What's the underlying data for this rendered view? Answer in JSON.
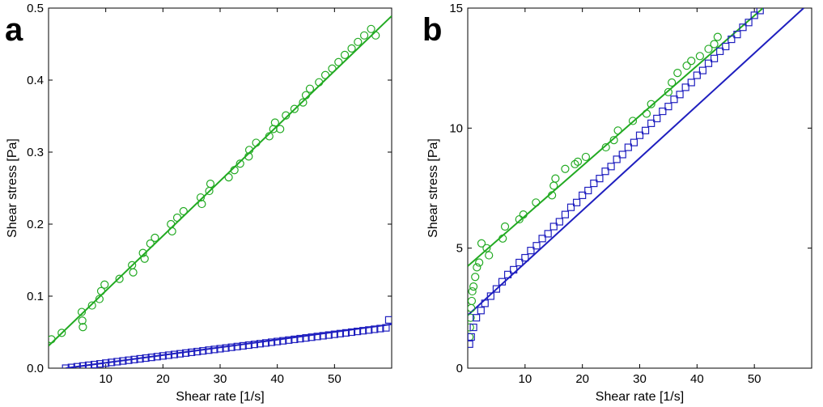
{
  "chart_data": [
    {
      "type": "scatter",
      "panel_label": "a",
      "xlabel": "Shear rate [1/s]",
      "ylabel": "Shear stress [Pa]",
      "xlim": [
        0,
        60
      ],
      "ylim": [
        0,
        0.5
      ],
      "xticks": [
        10,
        20,
        30,
        40,
        50
      ],
      "xtick_labels": [
        "10",
        "20",
        "30",
        "40",
        "50"
      ],
      "yticks": [
        0,
        0.1,
        0.2,
        0.3,
        0.4,
        0.5
      ],
      "ytick_labels": [
        "0.0",
        "0.1",
        "0.2",
        "0.3",
        "0.4",
        "0.5"
      ],
      "grid": false,
      "colors": {
        "green": "#22aa22",
        "blue": "#1f1fbf"
      },
      "series": [
        {
          "marker": "circle",
          "color": "#22aa22",
          "x": [
            0.5,
            2.3,
            5.8,
            5.9,
            6.0,
            7.6,
            8.9,
            9.2,
            9.8,
            12.4,
            14.6,
            14.8,
            16.5,
            16.8,
            17.8,
            18.6,
            21.4,
            21.6,
            22.5,
            23.6,
            26.6,
            26.8,
            28.1,
            28.3,
            31.5,
            32.5,
            33.5,
            35.0,
            35.1,
            36.3,
            38.6,
            39.3,
            39.6,
            40.5,
            41.5,
            43.0,
            44.5,
            45.0,
            45.7,
            47.3,
            48.4,
            49.6,
            50.7,
            51.8,
            53.0,
            54.1,
            55.2,
            56.4,
            57.2
          ],
          "y": [
            0.04,
            0.049,
            0.078,
            0.066,
            0.057,
            0.087,
            0.096,
            0.107,
            0.116,
            0.124,
            0.143,
            0.133,
            0.16,
            0.152,
            0.173,
            0.181,
            0.2,
            0.19,
            0.209,
            0.218,
            0.237,
            0.228,
            0.246,
            0.256,
            0.265,
            0.275,
            0.284,
            0.294,
            0.303,
            0.313,
            0.322,
            0.332,
            0.341,
            0.332,
            0.351,
            0.36,
            0.369,
            0.379,
            0.388,
            0.397,
            0.407,
            0.416,
            0.425,
            0.435,
            0.444,
            0.453,
            0.462,
            0.471,
            0.462
          ]
        },
        {
          "marker": "square",
          "color": "#1f1fbf",
          "x": [
            3,
            4,
            5,
            6,
            7,
            8,
            9,
            10,
            11,
            12,
            13,
            14,
            15,
            16,
            17,
            18,
            19,
            20,
            21,
            22,
            23,
            24,
            25,
            26,
            27,
            28,
            29,
            30,
            31,
            32,
            33,
            34,
            35,
            36,
            37,
            38,
            39,
            40,
            41,
            42,
            43,
            44,
            45,
            46,
            47,
            48,
            49,
            50,
            51,
            52,
            53,
            54,
            55,
            56,
            57,
            58,
            59,
            59.5
          ],
          "y": [
            0.0,
            0.001,
            0.002,
            0.003,
            0.004,
            0.005,
            0.006,
            0.007,
            0.008,
            0.009,
            0.01,
            0.011,
            0.012,
            0.013,
            0.014,
            0.015,
            0.016,
            0.017,
            0.018,
            0.019,
            0.02,
            0.021,
            0.022,
            0.023,
            0.024,
            0.025,
            0.026,
            0.027,
            0.028,
            0.029,
            0.03,
            0.031,
            0.032,
            0.033,
            0.034,
            0.035,
            0.036,
            0.037,
            0.038,
            0.039,
            0.04,
            0.041,
            0.042,
            0.043,
            0.044,
            0.045,
            0.046,
            0.047,
            0.048,
            0.049,
            0.05,
            0.051,
            0.052,
            0.053,
            0.054,
            0.055,
            0.056,
            0.067
          ]
        }
      ],
      "fit_lines": [
        {
          "color": "#22aa22",
          "x": [
            0,
            60
          ],
          "y": [
            0.031,
            0.489
          ]
        },
        {
          "color": "#1f1fbf",
          "x": [
            3,
            60
          ],
          "y": [
            0.0,
            0.061
          ]
        }
      ]
    },
    {
      "type": "scatter",
      "panel_label": "b",
      "xlabel": "Shear rate [1/s]",
      "ylabel": "Shear stress [Pa]",
      "xlim": [
        0,
        60
      ],
      "ylim": [
        0,
        15
      ],
      "xticks": [
        10,
        20,
        30,
        40,
        50
      ],
      "xtick_labels": [
        "10",
        "20",
        "30",
        "40",
        "50"
      ],
      "yticks": [
        0,
        5,
        10,
        15
      ],
      "ytick_labels": [
        "0",
        "5",
        "10",
        "15"
      ],
      "grid": false,
      "colors": {
        "green": "#22aa22",
        "blue": "#1f1fbf"
      },
      "series": [
        {
          "marker": "circle",
          "color": "#22aa22",
          "x": [
            0.3,
            0.4,
            0.5,
            0.6,
            0.7,
            0.8,
            1.0,
            1.3,
            1.6,
            2.0,
            2.4,
            3.3,
            3.7,
            6.1,
            6.5,
            9.0,
            9.7,
            11.9,
            14.7,
            15.0,
            15.3,
            17.0,
            18.7,
            19.2,
            20.6,
            24.1,
            25.5,
            26.2,
            28.8,
            31.2,
            32.0,
            35.0,
            35.6,
            36.6,
            38.2,
            39.0,
            40.5,
            42.0,
            43.0,
            43.6
          ],
          "y": [
            1.3,
            1.7,
            2.1,
            2.5,
            2.8,
            3.2,
            3.4,
            3.8,
            4.2,
            4.4,
            5.2,
            5.0,
            4.7,
            5.4,
            5.9,
            6.2,
            6.4,
            6.9,
            7.2,
            7.6,
            7.9,
            8.3,
            8.5,
            8.6,
            8.8,
            9.2,
            9.5,
            9.9,
            10.3,
            10.6,
            11.0,
            11.5,
            11.9,
            12.3,
            12.6,
            12.8,
            13.0,
            13.3,
            13.5,
            13.8
          ]
        },
        {
          "marker": "square",
          "color": "#1f1fbf",
          "x": [
            0.3,
            0.6,
            1.0,
            1.5,
            2.3,
            3.0,
            4.0,
            5.0,
            6.0,
            7.0,
            8.0,
            9.0,
            10.0,
            11.0,
            12.0,
            13.0,
            14.0,
            15.0,
            16.0,
            17.0,
            18.0,
            19.0,
            20.0,
            21.0,
            22.0,
            23.0,
            24.0,
            25.0,
            26.0,
            27.0,
            28.0,
            29.0,
            30.0,
            31.0,
            32.0,
            33.0,
            34.0,
            35.0,
            36.0,
            37.0,
            38.0,
            39.0,
            40.0,
            41.0,
            42.0,
            43.0,
            44.0,
            45.0,
            46.0,
            47.0,
            48.0,
            49.0,
            50.0,
            51.0,
            52.0
          ],
          "y": [
            1.0,
            1.3,
            1.7,
            2.1,
            2.4,
            2.7,
            3.0,
            3.3,
            3.6,
            3.9,
            4.1,
            4.4,
            4.6,
            4.9,
            5.1,
            5.4,
            5.6,
            5.9,
            6.1,
            6.4,
            6.7,
            6.9,
            7.2,
            7.4,
            7.7,
            7.9,
            8.2,
            8.4,
            8.7,
            8.9,
            9.2,
            9.4,
            9.7,
            9.9,
            10.2,
            10.4,
            10.7,
            10.9,
            11.2,
            11.4,
            11.7,
            11.9,
            12.2,
            12.4,
            12.7,
            12.9,
            13.2,
            13.4,
            13.7,
            13.9,
            14.2,
            14.4,
            14.7,
            14.9,
            15.2
          ]
        }
      ],
      "fit_lines": [
        {
          "color": "#22aa22",
          "x": [
            0,
            51.5
          ],
          "y": [
            4.25,
            15
          ]
        },
        {
          "color": "#1f1fbf",
          "x": [
            0,
            58.6
          ],
          "y": [
            2.2,
            15
          ]
        }
      ]
    }
  ]
}
